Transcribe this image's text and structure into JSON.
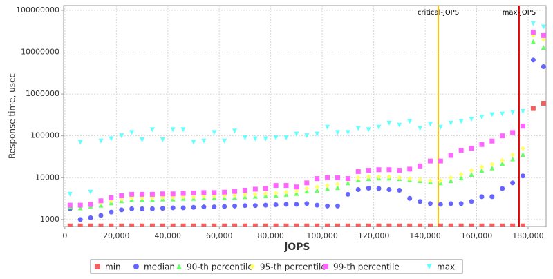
{
  "chart_data": {
    "type": "scatter",
    "x_label": "jOPS",
    "y_label": "Response time, usec",
    "log_y": true,
    "grid": true,
    "xlim": [
      -500,
      187000
    ],
    "ylim": [
      680,
      130000000
    ],
    "xticks": [
      0,
      {
        "value": 20000,
        "label": "20,000"
      },
      {
        "value": 40000,
        "label": "40,000"
      },
      {
        "value": 60000,
        "label": "60,000"
      },
      {
        "value": 80000,
        "label": "80,000"
      },
      {
        "value": 100000,
        "label": "100,000"
      },
      {
        "value": 120000,
        "label": "120,000"
      },
      {
        "value": 140000,
        "label": "140,000"
      },
      {
        "value": 160000,
        "label": "160,000"
      },
      {
        "value": 180000,
        "label": "180,000"
      }
    ],
    "yticks": [
      1000,
      10000,
      100000,
      1000000,
      10000000,
      100000000
    ],
    "annotations": [
      {
        "label": "critical-jOPS",
        "x": 145100,
        "color": "#ffc000"
      },
      {
        "label": "max-jOPS",
        "x": 176500,
        "color": "#e00000"
      }
    ],
    "x": [
      2000,
      6000,
      10000,
      14000,
      18000,
      22000,
      26000,
      30000,
      34000,
      38000,
      42000,
      46000,
      50000,
      54000,
      58000,
      62000,
      66000,
      70000,
      74000,
      78000,
      82000,
      86000,
      90000,
      94000,
      98000,
      102000,
      106000,
      110000,
      114000,
      118000,
      122000,
      126000,
      130000,
      134000,
      138000,
      142000,
      146000,
      150000,
      154000,
      158000,
      162000,
      166000,
      170000,
      174000,
      178000,
      182000,
      186000
    ],
    "series": [
      {
        "name": "min",
        "color": "#f06060",
        "marker": "square",
        "values": [
          700,
          700,
          700,
          700,
          700,
          700,
          700,
          700,
          700,
          700,
          700,
          700,
          700,
          700,
          700,
          700,
          700,
          700,
          700,
          700,
          700,
          700,
          700,
          700,
          700,
          700,
          700,
          700,
          700,
          700,
          700,
          700,
          700,
          700,
          700,
          700,
          700,
          700,
          700,
          700,
          700,
          700,
          700,
          700,
          700,
          450000,
          600000
        ]
      },
      {
        "name": "median",
        "color": "#6666ff",
        "marker": "circle",
        "values": [
          1800,
          1000,
          1100,
          1250,
          1500,
          1700,
          1800,
          1800,
          1800,
          1850,
          1900,
          1900,
          1950,
          2000,
          2000,
          2050,
          2100,
          2150,
          2150,
          2200,
          2250,
          2300,
          2300,
          2400,
          2200,
          2100,
          2100,
          4000,
          5200,
          5600,
          5500,
          5200,
          5000,
          3200,
          2700,
          2400,
          2300,
          2400,
          2400,
          2700,
          3500,
          3500,
          5500,
          7500,
          11000,
          6500000,
          4500000
        ]
      },
      {
        "name": "90-th percentile",
        "color": "#66ff66",
        "marker": "triangle",
        "values": [
          2000,
          1900,
          2100,
          2200,
          2500,
          2800,
          3000,
          3000,
          3000,
          3100,
          3100,
          3200,
          3200,
          3300,
          3300,
          3300,
          3400,
          3500,
          3600,
          3700,
          3800,
          4000,
          4200,
          4800,
          5000,
          5500,
          5800,
          7500,
          9000,
          9500,
          9800,
          9800,
          9500,
          9000,
          8500,
          8000,
          7500,
          8500,
          10000,
          12000,
          15000,
          17000,
          22000,
          28000,
          36000,
          18000000,
          13000000
        ]
      },
      {
        "name": "95-th percentile",
        "color": "#ffff66",
        "marker": "diamond",
        "values": [
          2200,
          2200,
          2300,
          2500,
          2800,
          3100,
          3300,
          3300,
          3300,
          3400,
          3400,
          3500,
          3500,
          3600,
          3600,
          3700,
          3800,
          3900,
          4000,
          4200,
          4300,
          4500,
          4800,
          5500,
          6000,
          6500,
          7000,
          9000,
          10000,
          10500,
          10500,
          10500,
          10000,
          9500,
          9000,
          8500,
          8500,
          10000,
          12000,
          15000,
          18000,
          21000,
          26000,
          35000,
          50000,
          25000000,
          20000000
        ]
      },
      {
        "name": "99-th percentile",
        "color": "#ff66ff",
        "marker": "square",
        "values": [
          2200,
          2200,
          2300,
          2800,
          3300,
          3700,
          4000,
          4000,
          4000,
          4100,
          4100,
          4200,
          4300,
          4400,
          4400,
          4500,
          4700,
          5000,
          5300,
          5500,
          6500,
          6500,
          6000,
          7500,
          9500,
          10000,
          10000,
          9500,
          14000,
          15000,
          15500,
          15500,
          15000,
          16000,
          19000,
          25000,
          25000,
          34000,
          45000,
          50000,
          62000,
          75000,
          100000,
          120000,
          170000,
          30000000,
          25000000
        ]
      },
      {
        "name": "max",
        "color": "#66ffff",
        "marker": "triangle-down",
        "values": [
          4000,
          70000,
          4500,
          75000,
          85000,
          100000,
          120000,
          80000,
          140000,
          80000,
          140000,
          140000,
          70000,
          75000,
          120000,
          75000,
          130000,
          90000,
          85000,
          85000,
          90000,
          90000,
          110000,
          100000,
          110000,
          160000,
          120000,
          120000,
          150000,
          140000,
          160000,
          200000,
          180000,
          220000,
          150000,
          190000,
          160000,
          200000,
          220000,
          250000,
          280000,
          320000,
          330000,
          360000,
          380000,
          48000000,
          40000000
        ]
      }
    ]
  }
}
